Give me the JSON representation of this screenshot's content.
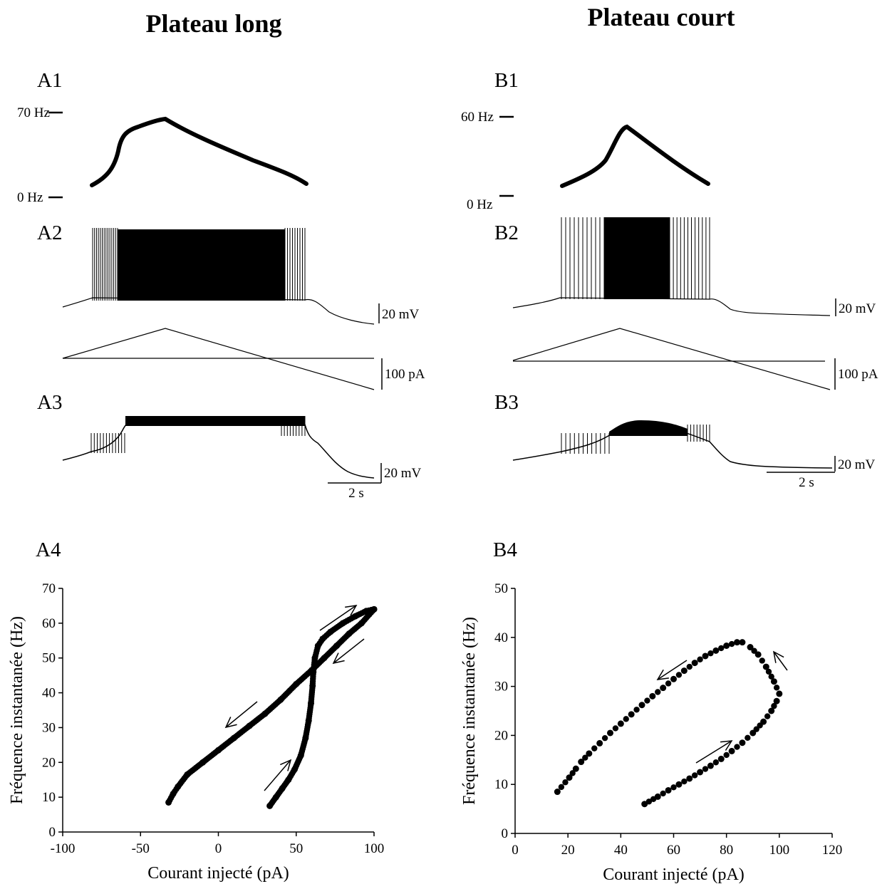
{
  "columns": {
    "A": {
      "title": "Plateau long"
    },
    "B": {
      "title": "Plateau court"
    }
  },
  "panels": {
    "A1": {
      "label": "A1",
      "top_mark": "70 Hz",
      "bottom_mark": "0 Hz"
    },
    "A2": {
      "label": "A2",
      "voltage_scale": "20 mV",
      "current_scale": "100 pA"
    },
    "A3": {
      "label": "A3",
      "voltage_scale": "20 mV",
      "time_scale": "2 s"
    },
    "A4": {
      "label": "A4"
    },
    "B1": {
      "label": "B1",
      "top_mark": "60 Hz",
      "bottom_mark": "0 Hz"
    },
    "B2": {
      "label": "B2",
      "voltage_scale": "20 mV",
      "current_scale": "100 pA"
    },
    "B3": {
      "label": "B3",
      "voltage_scale": "20 mV",
      "time_scale": "2 s"
    },
    "B4": {
      "label": "B4"
    }
  },
  "chart_data": [
    {
      "id": "A4",
      "type": "scatter",
      "xlabel": "Courant injecté (pA)",
      "ylabel": "Fréquence instantanée (Hz)",
      "xlim": [
        -100,
        100
      ],
      "ylim": [
        0,
        70
      ],
      "xticks": [
        -100,
        -50,
        0,
        50,
        100
      ],
      "yticks": [
        0,
        10,
        20,
        30,
        40,
        50,
        60,
        70
      ],
      "series": [
        {
          "points": [
            [
              33,
              7.5
            ],
            [
              37,
              10
            ],
            [
              41,
              12.5
            ],
            [
              45,
              15
            ],
            [
              49,
              18
            ],
            [
              53,
              22
            ],
            [
              56,
              27
            ],
            [
              58,
              32
            ],
            [
              59.5,
              37
            ],
            [
              60.5,
              42
            ],
            [
              61,
              46
            ],
            [
              62,
              50
            ],
            [
              64,
              53.5
            ],
            [
              67,
              55.5
            ],
            [
              72,
              57.5
            ],
            [
              80,
              60
            ],
            [
              88,
              62
            ],
            [
              95,
              63.5
            ],
            [
              100,
              64
            ]
          ]
        },
        {
          "points": [
            [
              100,
              64
            ],
            [
              92,
              60
            ],
            [
              84,
              57
            ],
            [
              76,
              53.5
            ],
            [
              68,
              50
            ],
            [
              60,
              46.5
            ],
            [
              50,
              42.5
            ],
            [
              40,
              38
            ],
            [
              30,
              34
            ],
            [
              20,
              30.5
            ],
            [
              10,
              27
            ],
            [
              0,
              23.5
            ],
            [
              -10,
              20
            ],
            [
              -20,
              16.5
            ],
            [
              -26,
              13
            ],
            [
              -29,
              11
            ],
            [
              -32,
              8.5
            ]
          ]
        }
      ]
    },
    {
      "id": "B4",
      "type": "scatter",
      "xlabel": "Courant injecté (pA)",
      "ylabel": "Fréquence instantanée (Hz)",
      "xlim": [
        0,
        120
      ],
      "ylim": [
        0,
        50
      ],
      "xticks": [
        0,
        20,
        40,
        60,
        80,
        100,
        120
      ],
      "yticks": [
        0,
        10,
        20,
        30,
        40,
        50
      ],
      "series": [
        {
          "points": [
            [
              49,
              6
            ],
            [
              54,
              7.5
            ],
            [
              58,
              8.8
            ],
            [
              62,
              10
            ],
            [
              66,
              11.2
            ],
            [
              70,
              12.5
            ],
            [
              74,
              13.8
            ],
            [
              78,
              15.2
            ],
            [
              82,
              16.8
            ],
            [
              86,
              18.5
            ],
            [
              90,
              20.5
            ],
            [
              94,
              22.8
            ],
            [
              97,
              25
            ],
            [
              99,
              27
            ],
            [
              100,
              28.5
            ],
            [
              98,
              31
            ],
            [
              95,
              34
            ],
            [
              92,
              36.5
            ],
            [
              89,
              38
            ],
            [
              86,
              39
            ],
            [
              84,
              39
            ],
            [
              80,
              38.3
            ],
            [
              76,
              37.3
            ],
            [
              72,
              36.2
            ],
            [
              68,
              34.8
            ],
            [
              64,
              33.2
            ],
            [
              60,
              31.5
            ],
            [
              56,
              29.7
            ],
            [
              52,
              28
            ],
            [
              48,
              26.2
            ],
            [
              44,
              24.3
            ],
            [
              40,
              22.4
            ],
            [
              36,
              20.5
            ],
            [
              32,
              18.4
            ],
            [
              28,
              16.3
            ],
            [
              25,
              14.6
            ],
            [
              23,
              13.2
            ],
            [
              20.5,
              11.4
            ],
            [
              16,
              8.5
            ]
          ]
        }
      ]
    }
  ]
}
